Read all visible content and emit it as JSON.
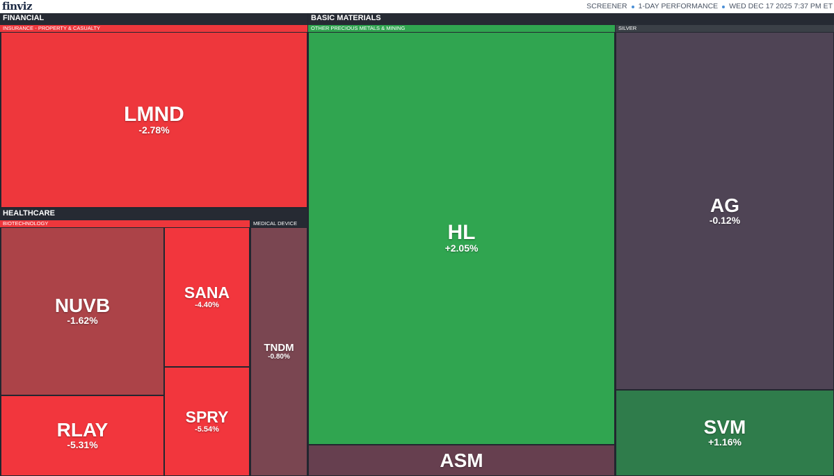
{
  "header": {
    "logo": "finviz",
    "nav_screener": "SCREENER",
    "nav_performance": "1-DAY PERFORMANCE",
    "timestamp": "WED DEC 17 2025 7:37 PM ET"
  },
  "sectors": {
    "financial": "FINANCIAL",
    "healthcare": "HEALTHCARE",
    "basic_materials": "BASIC MATERIALS"
  },
  "industries": {
    "insurance": "INSURANCE - PROPERTY & CASUALTY",
    "biotech": "BIOTECHNOLOGY",
    "medical_device": "MEDICAL DEVICE",
    "precious_metals": "OTHER PRECIOUS METALS & MINING",
    "silver": "SILVER"
  },
  "tiles": {
    "lmnd": {
      "ticker": "LMND",
      "change": "-2.78%",
      "color": "#ee373c"
    },
    "nuvb": {
      "ticker": "NUVB",
      "change": "-1.62%",
      "color": "#ac4348"
    },
    "sana": {
      "ticker": "SANA",
      "change": "-4.40%",
      "color": "#f2363d"
    },
    "spry": {
      "ticker": "SPRY",
      "change": "-5.54%",
      "color": "#f2363d"
    },
    "rlay": {
      "ticker": "RLAY",
      "change": "-5.31%",
      "color": "#f2363d"
    },
    "tndm": {
      "ticker": "TNDM",
      "change": "-0.80%",
      "color": "#7a4651"
    },
    "hl": {
      "ticker": "HL",
      "change": "+2.05%",
      "color": "#30a550"
    },
    "asm": {
      "ticker": "ASM",
      "change": "",
      "color": "#663f4f"
    },
    "ag": {
      "ticker": "AG",
      "change": "-0.12%",
      "color": "#4f4455"
    },
    "svm": {
      "ticker": "SVM",
      "change": "+1.16%",
      "color": "#2f7c4b"
    }
  },
  "colors": {
    "background": "#22262f",
    "sector_header": "#262a33",
    "accent_dot": "#4a8fd6"
  }
}
